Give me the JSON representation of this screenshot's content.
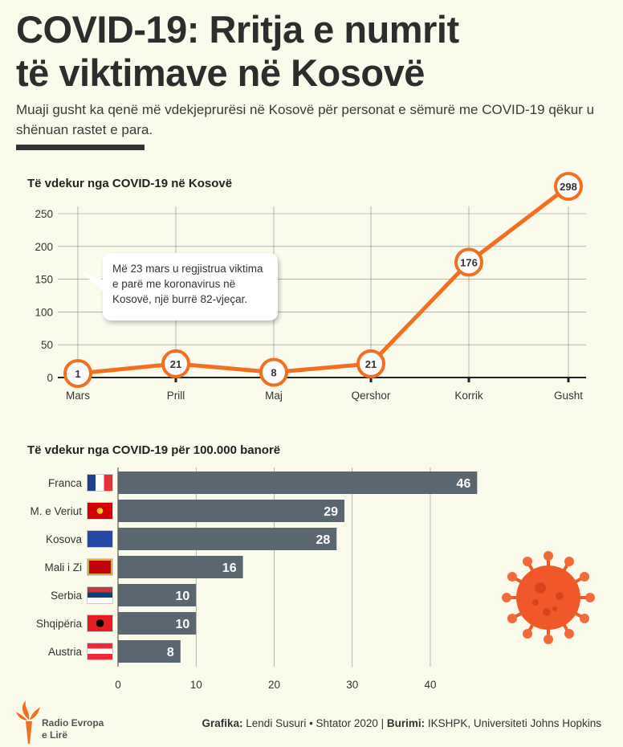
{
  "header": {
    "title_line1": "COVID-19: Rritja e numrit",
    "title_line2": "të viktimave në Kosovë",
    "subtitle": "Muaji gusht ka qenë më vdekjeprurësi në Kosovë për personat e sëmurë me COVID-19 qëkur u shënuan rastet e para."
  },
  "callout": "Më 23 mars u regjistrua viktima e parë me koronavirus në Kosovë, një burrë 82-vjeçar.",
  "footer": {
    "logo_line1": "Radio Evropa",
    "logo_line2": "e Lirë",
    "grafika_label": "Grafika:",
    "grafika_value": "Lendi Susuri • Shtator 2020 |",
    "burimi_label": "Burimi:",
    "burimi_value": "IKSHPK, Universiteti Johns Hopkins"
  },
  "colors": {
    "line": "#f26f21",
    "bar": "#5a6670",
    "bg": "#fafbeb"
  },
  "chart_data": [
    {
      "type": "line",
      "title": "Të vdekur nga COVID-19 në Kosovë",
      "categories": [
        "Mars",
        "Prill",
        "Maj",
        "Qershor",
        "Korrik",
        "Gusht"
      ],
      "values": [
        1,
        21,
        8,
        21,
        176,
        298
      ],
      "yticks": [
        "0",
        "50",
        "100",
        "150",
        "200",
        "250"
      ],
      "ylim": [
        0,
        250
      ],
      "grid": true
    },
    {
      "type": "bar",
      "orientation": "horizontal",
      "title": "Të vdekur nga COVID-19 për 100.000 banorë",
      "categories": [
        "Franca",
        "M. e Veriut",
        "Kosova",
        "Mali i Zi",
        "Serbia",
        "Shqipëria",
        "Austria"
      ],
      "values": [
        46,
        29,
        28,
        16,
        10,
        10,
        8
      ],
      "xticks": [
        "0",
        "10",
        "20",
        "30",
        "40"
      ],
      "xlim": [
        0,
        46
      ],
      "grid": true
    }
  ]
}
